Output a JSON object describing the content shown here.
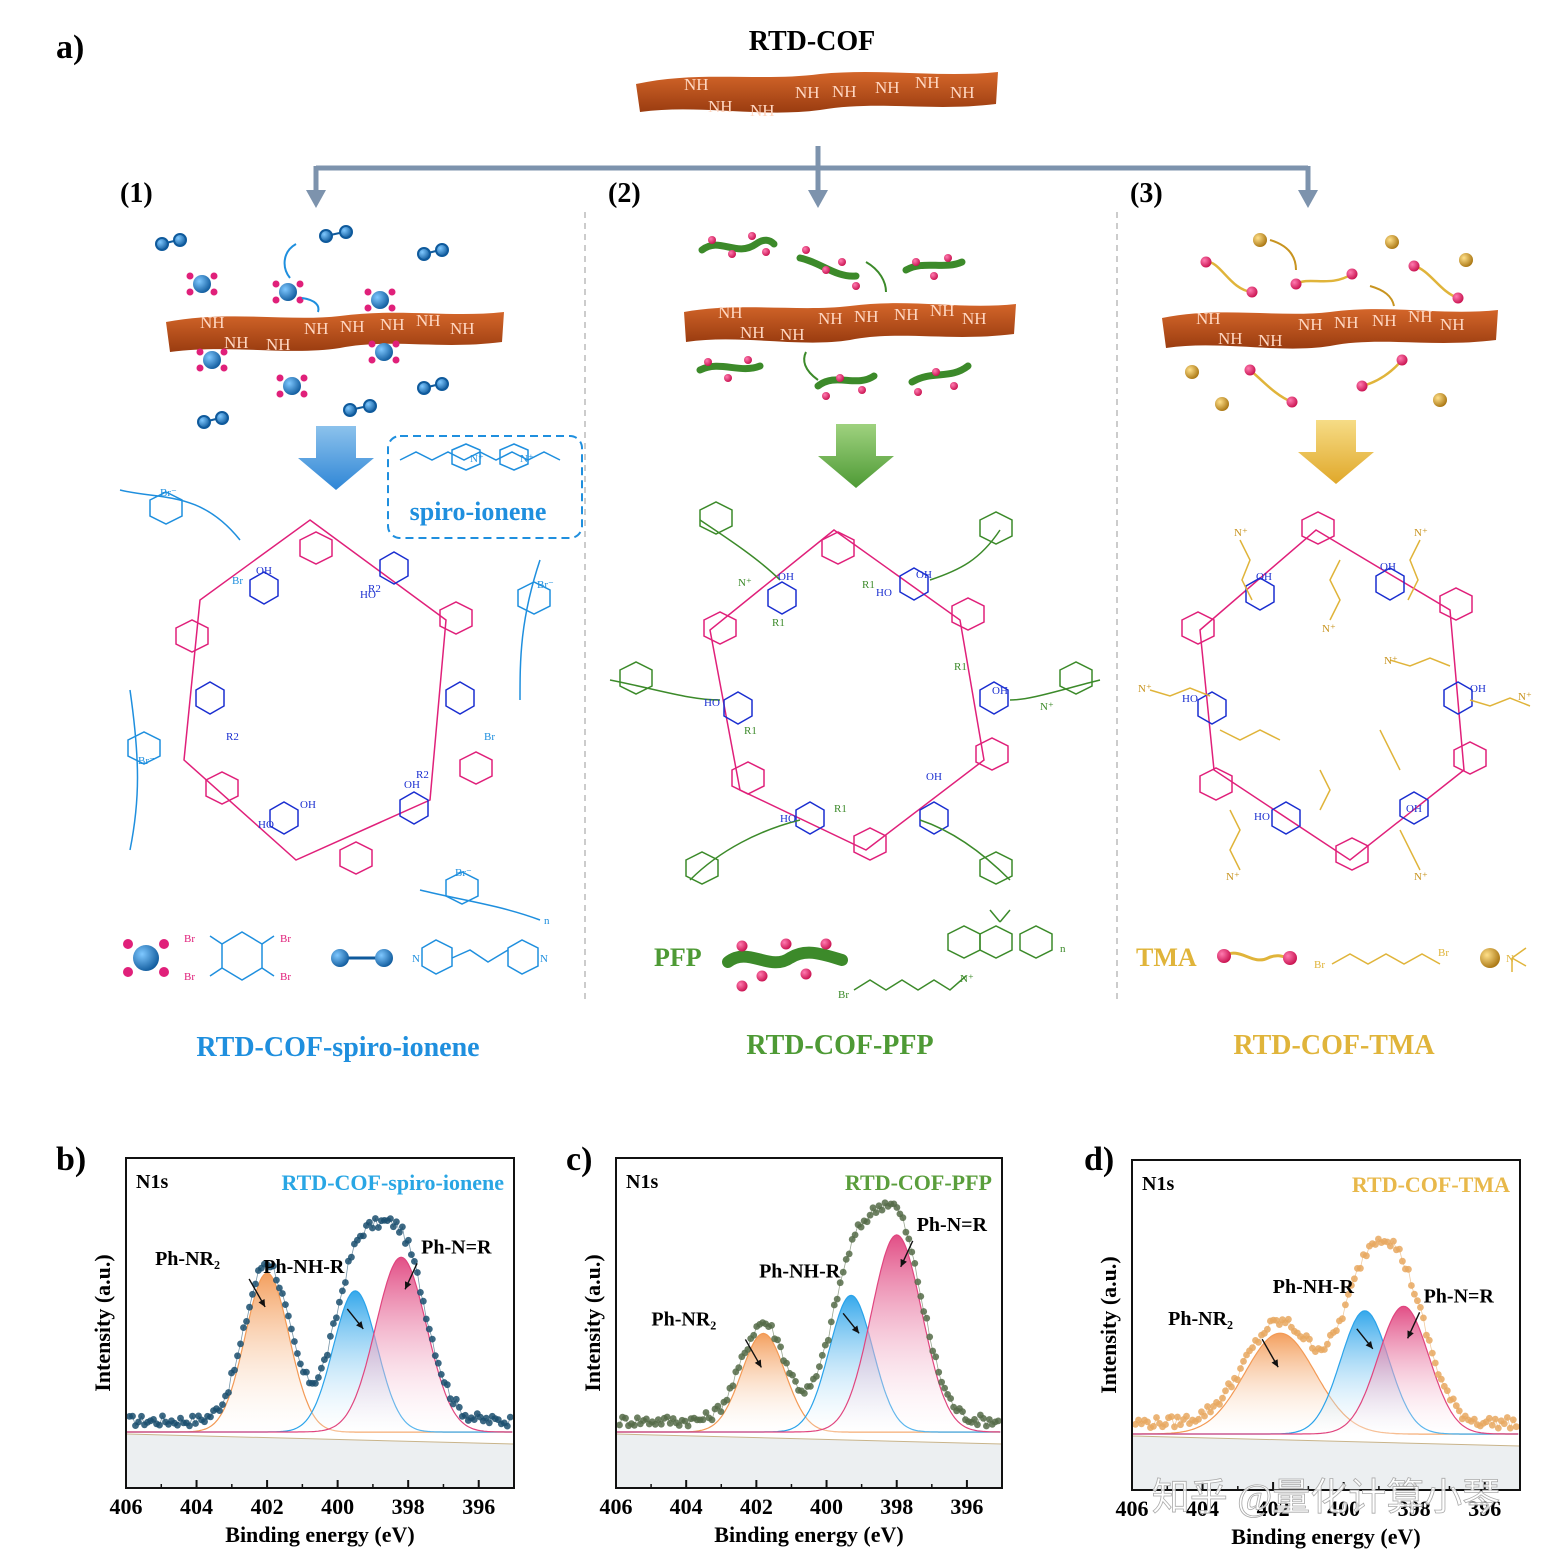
{
  "panel_a": {
    "label": "a)",
    "top_title": "RTD-COF",
    "steps": [
      "(1)",
      "(2)",
      "(3)"
    ],
    "nh_label": "NH",
    "spiro_box_label": "spiro-ionene",
    "legend_pfp": "PFP",
    "legend_tma": "TMA",
    "chem_labels": {
      "br": "Br",
      "br_minus": "Br⁻",
      "oh": "OH",
      "ho": "HO",
      "r1": "R1",
      "r2": "R2",
      "n": "N",
      "n_plus": "N⁺",
      "sub_n": "n"
    },
    "products": [
      "RTD-COF-spiro-ionene",
      "RTD-COF-PFP",
      "RTD-COF-TMA"
    ],
    "colors": {
      "cof": "#c45a1c",
      "arrow": "#7d93ad",
      "blue": "#1f8fde",
      "green": "#4e9a35",
      "gold": "#e0b43a",
      "magenta": "#e0207a",
      "navy": "#1a2ed0"
    }
  },
  "xps_common": {
    "axis_label_x": "Binding energy (eV)",
    "axis_label_y": "Intensity (a.u.)",
    "region": "N1s",
    "peak_labels": [
      "Ph-NR₂",
      "Ph-NH-R",
      "Ph-N=R"
    ]
  },
  "watermark": "知乎 @量化计算小琴",
  "chart_data": [
    {
      "panel": "b)",
      "type": "line",
      "title": "RTD-COF-spiro-ionene",
      "title_color": "#29a6e4",
      "xlabel": "Binding energy (eV)",
      "ylabel": "Intensity (a.u.)",
      "xlim": [
        406,
        395
      ],
      "xticks": [
        406,
        404,
        402,
        400,
        398,
        396
      ],
      "peaks": [
        {
          "name": "Ph-NR₂",
          "center": 402.0,
          "height": 0.71,
          "sigma": 0.62,
          "color": "#f39a55"
        },
        {
          "name": "Ph-NH-R",
          "center": 399.5,
          "height": 0.63,
          "sigma": 0.62,
          "color": "#2aa3ea"
        },
        {
          "name": "Ph-N=R",
          "center": 398.2,
          "height": 0.78,
          "sigma": 0.72,
          "color": "#e0457f"
        }
      ],
      "point_color": "#1b4f6e"
    },
    {
      "panel": "c)",
      "type": "line",
      "title": "RTD-COF-PFP",
      "title_color": "#5a9e3c",
      "xlabel": "Binding energy (eV)",
      "ylabel": "Intensity (a.u.)",
      "xlim": [
        406,
        395
      ],
      "xticks": [
        406,
        404,
        402,
        400,
        398,
        396
      ],
      "peaks": [
        {
          "name": "Ph-NR₂",
          "center": 401.8,
          "height": 0.44,
          "sigma": 0.62,
          "color": "#f39a55"
        },
        {
          "name": "Ph-NH-R",
          "center": 399.3,
          "height": 0.61,
          "sigma": 0.62,
          "color": "#2aa3ea"
        },
        {
          "name": "Ph-N=R",
          "center": 398.0,
          "height": 0.88,
          "sigma": 0.72,
          "color": "#e0457f"
        }
      ],
      "point_color": "#556b48"
    },
    {
      "panel": "d)",
      "type": "line",
      "title": "RTD-COF-TMA",
      "title_color": "#e8b84a",
      "xlabel": "Binding energy (eV)",
      "ylabel": "Intensity (a.u.)",
      "xlim": [
        406,
        395
      ],
      "xticks": [
        406,
        404,
        402,
        400,
        398,
        396
      ],
      "peaks": [
        {
          "name": "Ph-NR₂",
          "center": 401.8,
          "height": 0.45,
          "sigma": 1.0,
          "color": "#f39a55"
        },
        {
          "name": "Ph-NH-R",
          "center": 399.4,
          "height": 0.55,
          "sigma": 0.68,
          "color": "#2aa3ea"
        },
        {
          "name": "Ph-N=R",
          "center": 398.3,
          "height": 0.57,
          "sigma": 0.72,
          "color": "#e0457f"
        }
      ],
      "point_color": "#e8a860"
    }
  ]
}
